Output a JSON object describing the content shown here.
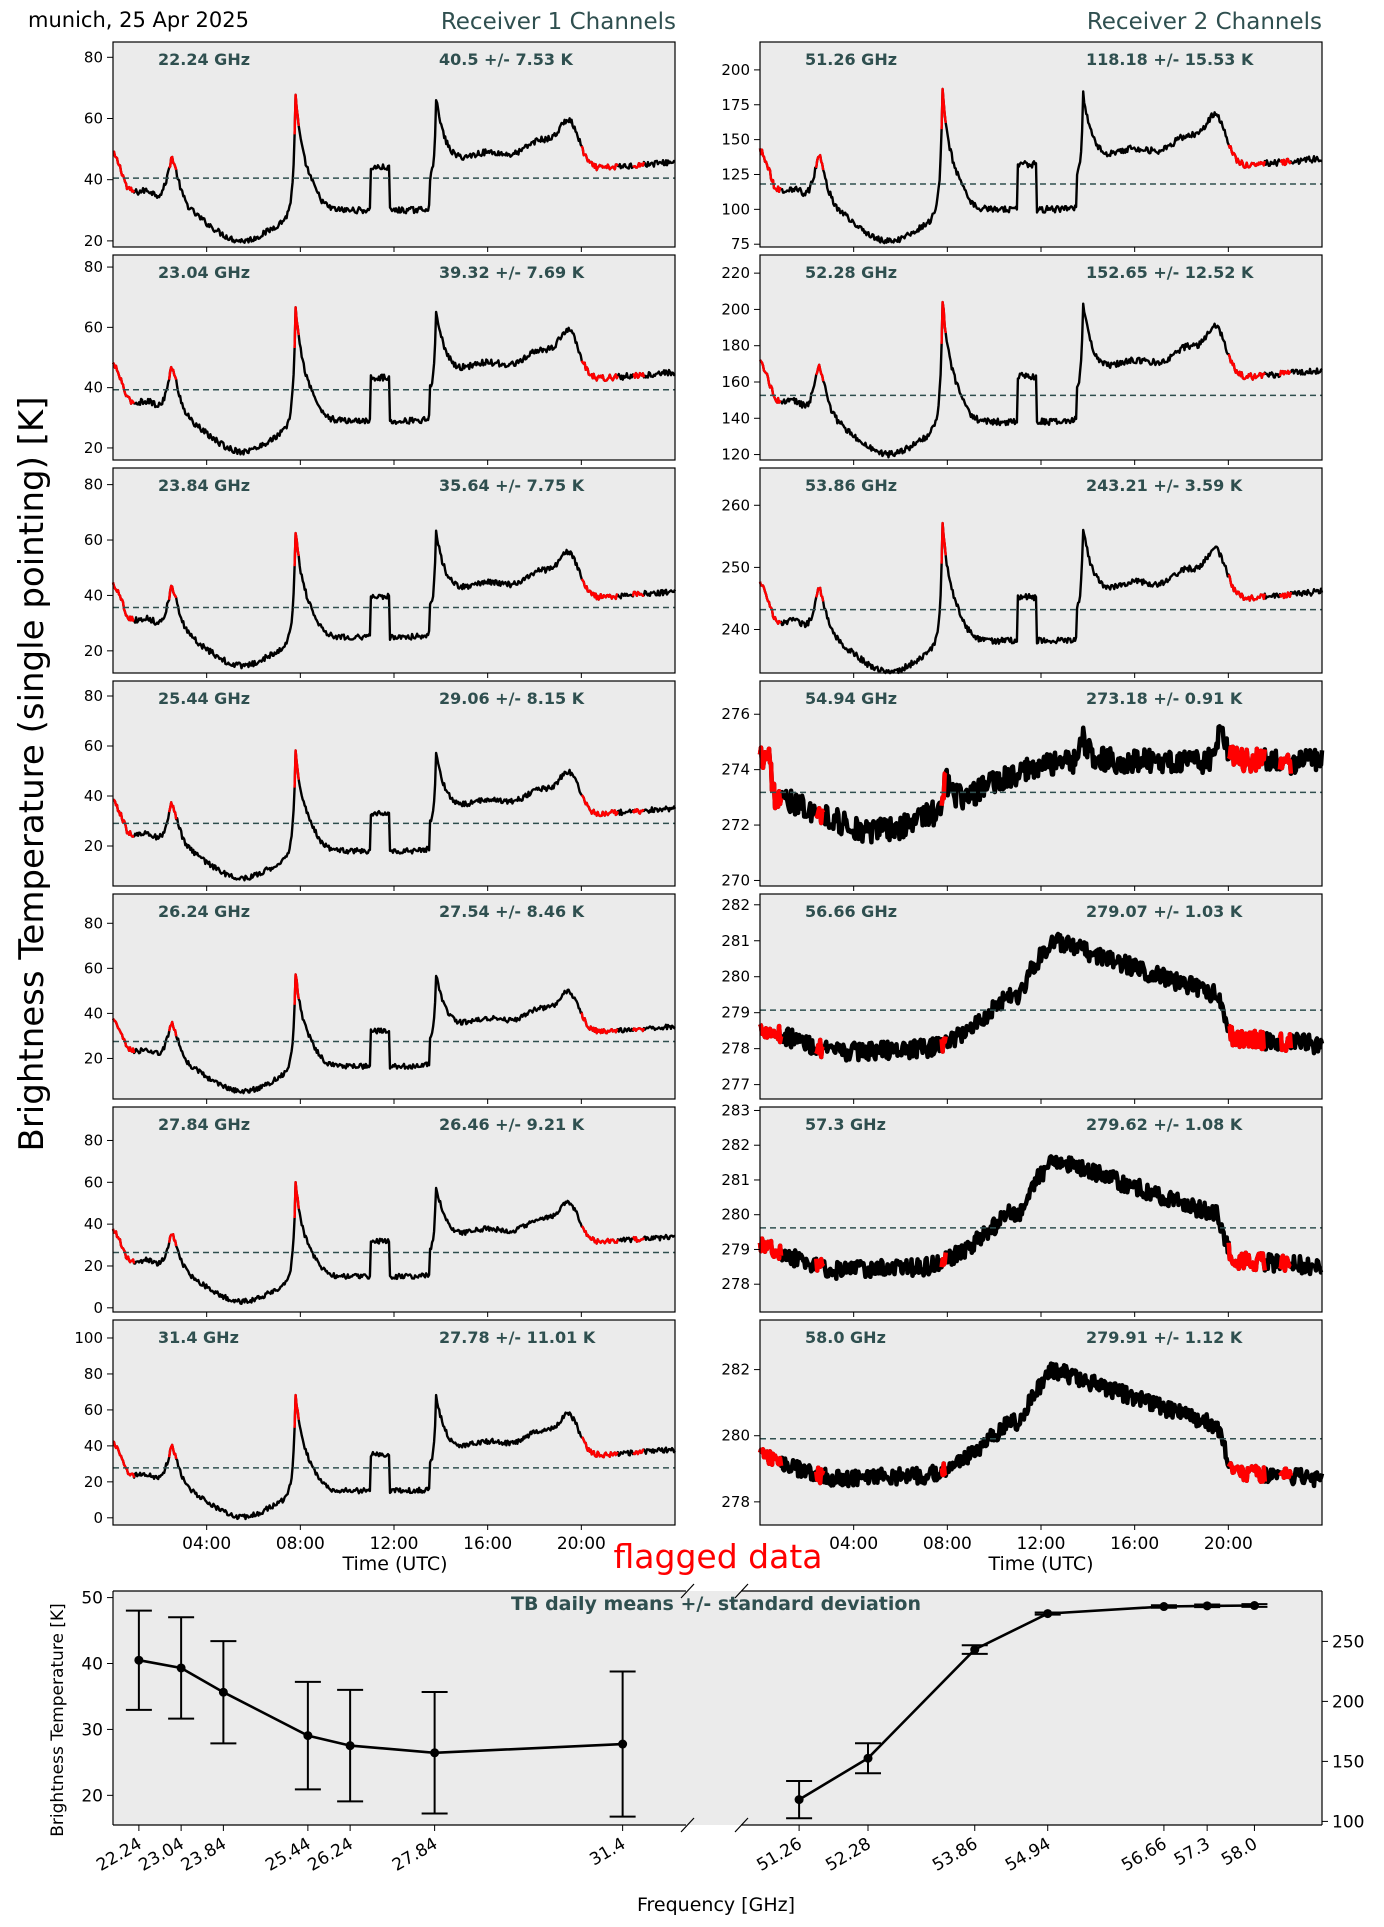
{
  "header": {
    "site_label": "munich, 25 Apr 2025",
    "receiver1_title": "Receiver 1 Channels",
    "receiver2_title": "Receiver 2 Channels",
    "main_ylabel": "Brightness Temperature (single pointing) [K]",
    "time_xlabel": "Time (UTC)",
    "flagged_label": "flagged data"
  },
  "colors": {
    "panel_bg": "#ebebeb",
    "data_line": "#000000",
    "flagged": "#ff0000",
    "mean_line": "#2f4f4f",
    "label_text": "#2f4f4f"
  },
  "chart_data": [
    {
      "type": "line",
      "group": "Receiver 1 Channels",
      "x_ticks": [
        "04:00",
        "08:00",
        "12:00",
        "16:00",
        "20:00"
      ],
      "xlabel": "Time (UTC)",
      "shape": "r1",
      "channels": [
        {
          "freq_label": "22.24 GHz",
          "stats_label": "40.5 +/- 7.53 K",
          "mean": 40.5,
          "std": 7.53,
          "ylim": [
            18,
            85
          ],
          "yticks": [
            20,
            40,
            60,
            80
          ],
          "base": 30,
          "amp": 1.0
        },
        {
          "freq_label": "23.04 GHz",
          "stats_label": "39.32 +/- 7.69 K",
          "mean": 39.32,
          "std": 7.69,
          "ylim": [
            16,
            84
          ],
          "yticks": [
            20,
            40,
            60,
            80
          ],
          "base": 29,
          "amp": 1.02
        },
        {
          "freq_label": "23.84 GHz",
          "stats_label": "35.64 +/- 7.75 K",
          "mean": 35.64,
          "std": 7.75,
          "ylim": [
            12,
            86
          ],
          "yticks": [
            20,
            40,
            60,
            80
          ],
          "base": 25,
          "amp": 1.04
        },
        {
          "freq_label": "25.44 GHz",
          "stats_label": "29.06 +/- 8.15 K",
          "mean": 29.06,
          "std": 8.15,
          "ylim": [
            4,
            86
          ],
          "yticks": [
            20,
            40,
            60,
            80
          ],
          "base": 18,
          "amp": 1.08
        },
        {
          "freq_label": "26.24 GHz",
          "stats_label": "27.54 +/- 8.46 K",
          "mean": 27.54,
          "std": 8.46,
          "ylim": [
            2,
            93
          ],
          "yticks": [
            20,
            40,
            60,
            80
          ],
          "base": 16.5,
          "amp": 1.12
        },
        {
          "freq_label": "27.84 GHz",
          "stats_label": "26.46 +/- 9.21 K",
          "mean": 26.46,
          "std": 9.21,
          "ylim": [
            -2,
            96
          ],
          "yticks": [
            0,
            20,
            40,
            60,
            80
          ],
          "base": 15,
          "amp": 1.2
        },
        {
          "freq_label": "31.4 GHz",
          "stats_label": "27.78 +/- 11.01 K",
          "mean": 27.78,
          "std": 11.01,
          "ylim": [
            -4,
            110
          ],
          "yticks": [
            0,
            20,
            40,
            60,
            80,
            100
          ],
          "base": 15,
          "amp": 1.45
        }
      ]
    },
    {
      "type": "line",
      "group": "Receiver 2 Channels",
      "x_ticks": [
        "04:00",
        "08:00",
        "12:00",
        "16:00",
        "20:00"
      ],
      "xlabel": "Time (UTC)",
      "channels": [
        {
          "freq_label": "51.26 GHz",
          "stats_label": "118.18 +/- 15.53 K",
          "mean": 118.18,
          "std": 15.53,
          "ylim": [
            73,
            220
          ],
          "yticks": [
            75,
            100,
            125,
            150,
            175,
            200
          ],
          "shape": "r1",
          "base": 100,
          "amp": 2.3
        },
        {
          "freq_label": "52.28 GHz",
          "stats_label": "152.65 +/- 12.52 K",
          "mean": 152.65,
          "std": 12.52,
          "ylim": [
            117,
            230
          ],
          "yticks": [
            120,
            140,
            160,
            180,
            200,
            220
          ],
          "shape": "r1",
          "base": 138,
          "amp": 1.8
        },
        {
          "freq_label": "53.86 GHz",
          "stats_label": "243.21 +/- 3.59 K",
          "mean": 243.21,
          "std": 3.59,
          "ylim": [
            233,
            266
          ],
          "yticks": [
            240,
            250,
            260
          ],
          "shape": "r1",
          "base": 238.2,
          "amp": 0.5
        },
        {
          "freq_label": "54.94 GHz",
          "stats_label": "273.18 +/- 0.91 K",
          "mean": 273.18,
          "std": 0.91,
          "ylim": [
            269.8,
            277.2
          ],
          "yticks": [
            270,
            272,
            274,
            276
          ],
          "shape": "r54"
        },
        {
          "freq_label": "56.66 GHz",
          "stats_label": "279.07 +/- 1.03 K",
          "mean": 279.07,
          "std": 1.03,
          "ylim": [
            276.6,
            282.3
          ],
          "yticks": [
            277,
            278,
            279,
            280,
            281,
            282
          ],
          "shape": "hump",
          "p": [
            278.6,
            277.9,
            278.0,
            281.0,
            279.5,
            278.3
          ]
        },
        {
          "freq_label": "57.3 GHz",
          "stats_label": "279.62 +/- 1.08 K",
          "mean": 279.62,
          "std": 1.08,
          "ylim": [
            277.2,
            283.1
          ],
          "yticks": [
            278,
            279,
            280,
            281,
            282,
            283
          ],
          "shape": "hump",
          "p": [
            279.1,
            278.4,
            278.5,
            281.6,
            280.0,
            278.7
          ]
        },
        {
          "freq_label": "58.0 GHz",
          "stats_label": "279.91 +/- 1.12 K",
          "mean": 279.91,
          "std": 1.12,
          "ylim": [
            277.3,
            283.5
          ],
          "yticks": [
            278,
            280,
            282
          ],
          "shape": "hump",
          "p": [
            279.4,
            278.7,
            278.8,
            282.0,
            280.3,
            278.9
          ]
        }
      ]
    },
    {
      "type": "line",
      "title": "TB daily means +/- standard deviation",
      "xlabel": "Frequency [GHz]",
      "ylabel": "Brightness Temperature [K]",
      "left": {
        "x": [
          22.24,
          23.04,
          23.84,
          25.44,
          26.24,
          27.84,
          31.4
        ],
        "tick_labels": [
          "22.24",
          "23.04",
          "23.84",
          "25.44",
          "26.24",
          "27.84",
          "31.4"
        ],
        "mean": [
          40.5,
          39.32,
          35.64,
          29.06,
          27.54,
          26.46,
          27.78
        ],
        "std": [
          7.53,
          7.69,
          7.75,
          8.15,
          8.46,
          9.21,
          11.01
        ],
        "ylim": [
          15.5,
          51
        ],
        "yticks": [
          20,
          30,
          40,
          50
        ]
      },
      "right": {
        "x": [
          51.26,
          52.28,
          53.86,
          54.94,
          56.66,
          57.3,
          58.0
        ],
        "tick_labels": [
          "51.26",
          "52.28",
          "53.86",
          "54.94",
          "56.66",
          "57.3",
          "58.0"
        ],
        "mean": [
          118.18,
          152.65,
          243.21,
          273.18,
          279.07,
          279.62,
          279.91
        ],
        "std": [
          15.53,
          12.52,
          3.59,
          0.91,
          1.03,
          1.08,
          1.12
        ],
        "ylim": [
          97,
          292
        ],
        "yticks": [
          100,
          150,
          200,
          250
        ]
      }
    }
  ]
}
